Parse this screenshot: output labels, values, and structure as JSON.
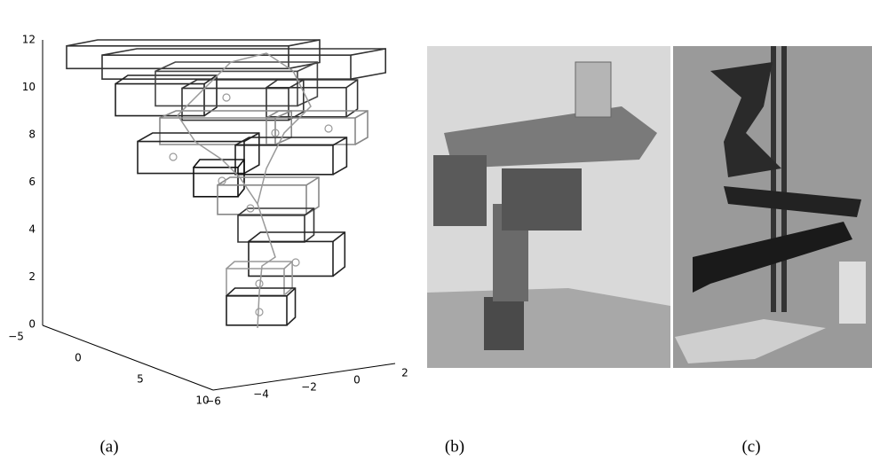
{
  "figure": {
    "panels": [
      {
        "label": "(a)",
        "axes": {
          "z_ticks": [
            "0",
            "2",
            "4",
            "6",
            "8",
            "10",
            "12"
          ],
          "x_ticks": [
            "−5",
            "0",
            "5",
            "10"
          ],
          "y_ticks": [
            "−6",
            "−4",
            "−2",
            "0",
            "2"
          ]
        }
      },
      {
        "label": "(b)"
      },
      {
        "label": "(c)"
      }
    ]
  }
}
